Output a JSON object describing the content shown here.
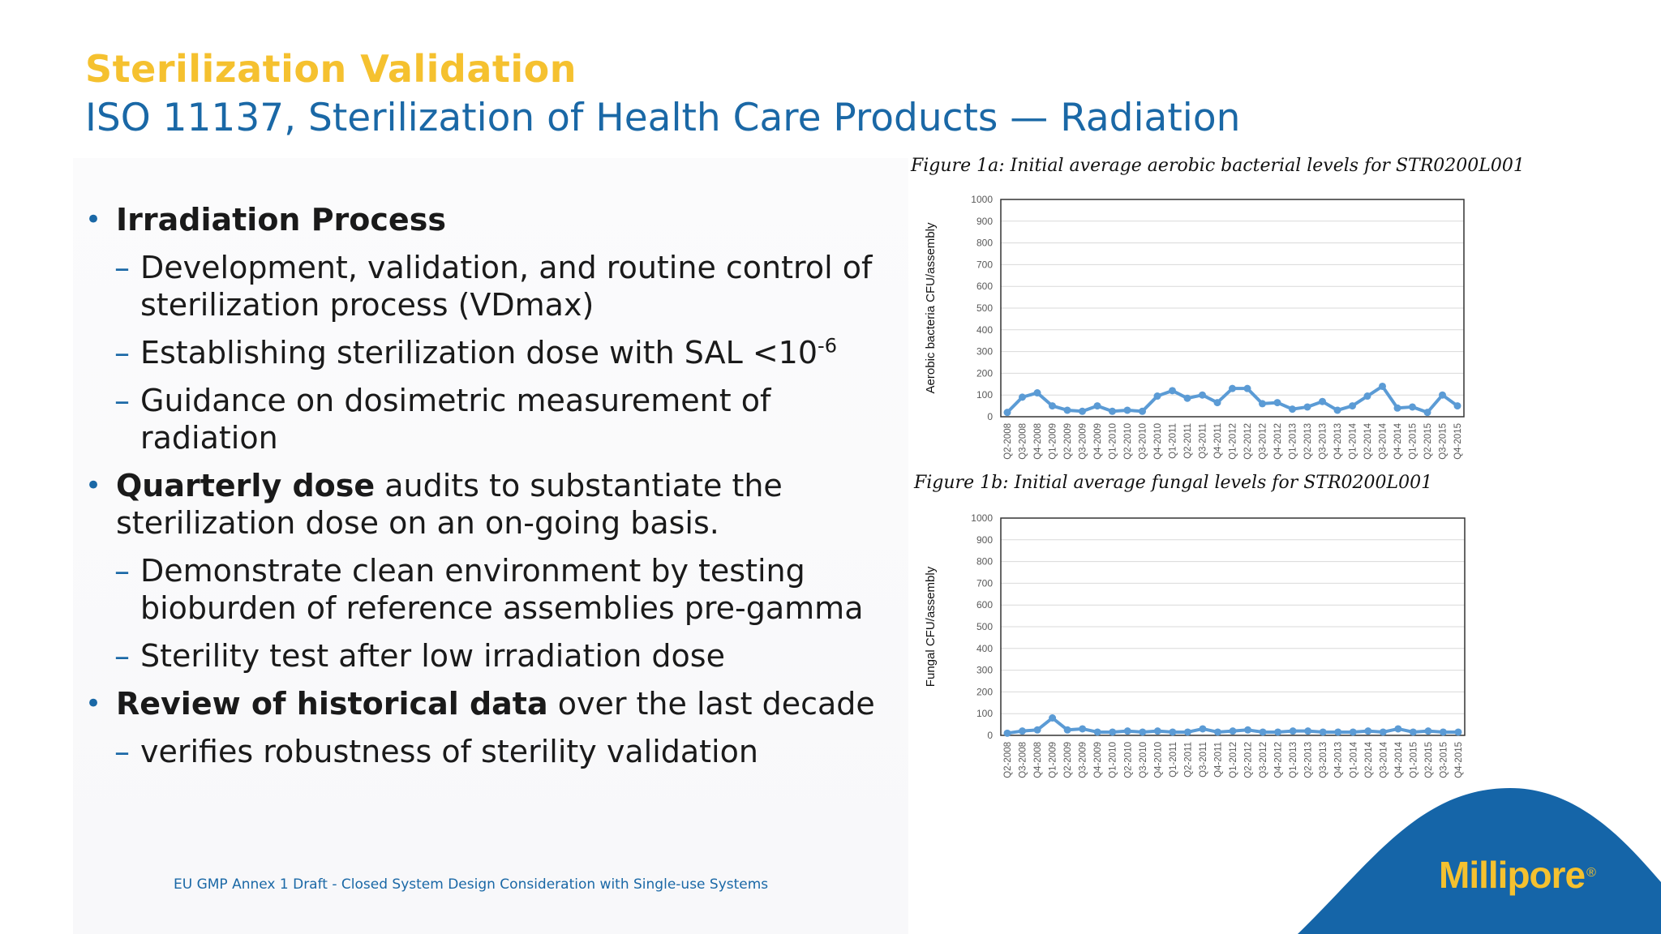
{
  "slide": {
    "title": "Sterilization Validation",
    "subtitle": "ISO 11137, Sterilization of Health Care Products — Radiation",
    "footer": "EU GMP Annex 1 Draft - Closed System Design Consideration with Single-use Systems",
    "logo": "Millipore",
    "logo_mark": "®",
    "colors": {
      "title": "#f5c12f",
      "subtitle": "#1a68a6",
      "accent_blue": "#1565a8",
      "series": "#5b9bd5"
    }
  },
  "bullets": {
    "b1": {
      "bold": "Irradiation Process",
      "rest": ""
    },
    "b1_subs": [
      "Development, validation, and routine control of sterilization process (VDmax)",
      "Establishing sterilization dose with SAL <10",
      "Guidance on dosimetric measurement of radiation"
    ],
    "b1_sub2_sup": "-6",
    "b2": {
      "bold": "Quarterly dose",
      "rest": " audits to substantiate the sterilization dose on an on-going basis."
    },
    "b2_subs": [
      "Demonstrate clean environment by testing bioburden of reference assemblies pre-gamma",
      "Sterility test after low irradiation dose"
    ],
    "b3": {
      "bold": "Review of historical data",
      "rest": " over the last decade"
    },
    "b3_subs": [
      "verifies robustness of sterility validation"
    ],
    "dash": "–",
    "dot": "•"
  },
  "chart_data": [
    {
      "type": "line",
      "caption": "Figure 1a: Initial average aerobic bacterial levels for STR0200L001",
      "xlabel": "",
      "ylabel": "Aerobic bacteria CFU/assembly",
      "ylim": [
        0,
        1000
      ],
      "yticks": [
        0,
        100,
        200,
        300,
        400,
        500,
        600,
        700,
        800,
        900,
        1000
      ],
      "grid": true,
      "categories": [
        "Q2-2008",
        "Q3-2008",
        "Q4-2008",
        "Q1-2009",
        "Q2-2009",
        "Q3-2009",
        "Q4-2009",
        "Q1-2010",
        "Q2-2010",
        "Q3-2010",
        "Q4-2010",
        "Q1-2011",
        "Q2-2011",
        "Q3-2011",
        "Q4-2011",
        "Q1-2012",
        "Q2-2012",
        "Q3-2012",
        "Q4-2012",
        "Q1-2013",
        "Q2-2013",
        "Q3-2013",
        "Q4-2013",
        "Q1-2014",
        "Q2-2014",
        "Q3-2014",
        "Q4-2014",
        "Q1-2015",
        "Q2-2015",
        "Q3-2015",
        "Q4-2015"
      ],
      "series": [
        {
          "values": [
            20,
            90,
            110,
            50,
            30,
            25,
            50,
            25,
            30,
            25,
            95,
            120,
            85,
            100,
            65,
            130,
            130,
            60,
            65,
            35,
            45,
            70,
            30,
            50,
            95,
            140,
            40,
            45,
            20,
            100,
            50
          ]
        }
      ]
    },
    {
      "type": "line",
      "caption": "Figure 1b: Initial average fungal levels for STR0200L001",
      "xlabel": "",
      "ylabel": "Fungal CFU/assembly",
      "ylim": [
        0,
        1000
      ],
      "yticks": [
        0,
        100,
        200,
        300,
        400,
        500,
        600,
        700,
        800,
        900,
        1000
      ],
      "grid": true,
      "categories": [
        "Q2-2008",
        "Q3-2008",
        "Q4-2008",
        "Q1-2009",
        "Q2-2009",
        "Q3-2009",
        "Q4-2009",
        "Q1-2010",
        "Q2-2010",
        "Q3-2010",
        "Q4-2010",
        "Q1-2011",
        "Q2-2011",
        "Q3-2011",
        "Q4-2011",
        "Q1-2012",
        "Q2-2012",
        "Q3-2012",
        "Q4-2012",
        "Q1-2013",
        "Q2-2013",
        "Q3-2013",
        "Q4-2013",
        "Q1-2014",
        "Q2-2014",
        "Q3-2014",
        "Q4-2014",
        "Q1-2015",
        "Q2-2015",
        "Q3-2015",
        "Q4-2015"
      ],
      "series": [
        {
          "values": [
            10,
            20,
            25,
            80,
            25,
            30,
            15,
            15,
            20,
            15,
            20,
            15,
            15,
            30,
            15,
            20,
            25,
            15,
            15,
            20,
            20,
            15,
            15,
            15,
            20,
            15,
            30,
            15,
            20,
            15,
            15
          ]
        }
      ]
    }
  ]
}
